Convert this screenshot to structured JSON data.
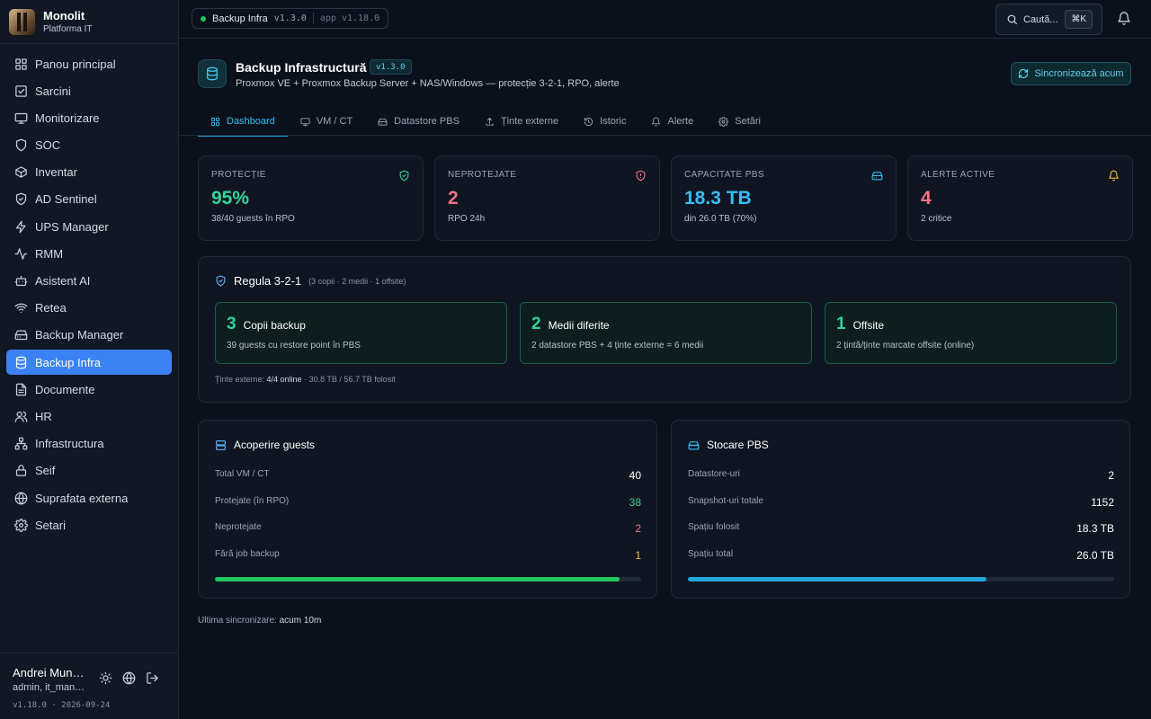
{
  "brand": {
    "name": "Monolit",
    "subtitle": "Platforma IT"
  },
  "sidebar": {
    "items": [
      {
        "label": "Panou principal",
        "icon": "dashboard-icon"
      },
      {
        "label": "Sarcini",
        "icon": "checkbox-icon"
      },
      {
        "label": "Monitorizare",
        "icon": "monitor-icon"
      },
      {
        "label": "SOC",
        "icon": "shield-icon"
      },
      {
        "label": "Inventar",
        "icon": "box-icon"
      },
      {
        "label": "AD Sentinel",
        "icon": "shield-check-icon"
      },
      {
        "label": "UPS Manager",
        "icon": "zap-icon"
      },
      {
        "label": "RMM",
        "icon": "activity-icon"
      },
      {
        "label": "Asistent AI",
        "icon": "bot-icon"
      },
      {
        "label": "Retea",
        "icon": "wifi-icon"
      },
      {
        "label": "Backup Manager",
        "icon": "hard-drive-icon"
      },
      {
        "label": "Backup Infra",
        "icon": "database-icon",
        "active": true
      },
      {
        "label": "Documente",
        "icon": "document-icon"
      },
      {
        "label": "HR",
        "icon": "users-icon"
      },
      {
        "label": "Infrastructura",
        "icon": "network-icon"
      },
      {
        "label": "Seif",
        "icon": "lock-icon"
      },
      {
        "label": "Suprafata externa",
        "icon": "globe-icon"
      },
      {
        "label": "Setari",
        "icon": "gear-icon"
      }
    ]
  },
  "user": {
    "name": "Andrei Muntean",
    "role": "admin, it_manager"
  },
  "footer": {
    "version": "v1.18.0 · 2026-09-24"
  },
  "topbar": {
    "crumb_label": "Backup Infra",
    "crumb_version": "v1.3.0",
    "app_version": "app v1.18.0",
    "search_label": "Caută...",
    "search_shortcut": "⌘K"
  },
  "header": {
    "title": "Backup Infrastructură",
    "version": "v1.3.0",
    "subtitle": "Proxmox VE + Proxmox Backup Server + NAS/Windows — protecție 3-2-1, RPO, alerte",
    "sync_button": "Sincronizează acum"
  },
  "tabs": [
    {
      "label": "Dashboard",
      "icon": "grid-icon",
      "active": true
    },
    {
      "label": "VM / CT",
      "icon": "monitor-icon"
    },
    {
      "label": "Datastore PBS",
      "icon": "hard-drive-icon"
    },
    {
      "label": "Ținte externe",
      "icon": "upload-icon"
    },
    {
      "label": "Istoric",
      "icon": "history-icon"
    },
    {
      "label": "Alerte",
      "icon": "bell-icon"
    },
    {
      "label": "Setări",
      "icon": "gear-icon"
    }
  ],
  "stats": [
    {
      "label": "PROTECȚIE",
      "value": "95%",
      "sub": "38/40 guests în RPO",
      "color": "#34d399",
      "icon": "shield-check-icon"
    },
    {
      "label": "NEPROTEJATE",
      "value": "2",
      "sub": "RPO 24h",
      "color": "#f87185",
      "icon": "shield-alert-icon"
    },
    {
      "label": "CAPACITATE PBS",
      "value": "18.3 TB",
      "sub": "din 26.0 TB (70%)",
      "color": "#38bdf8",
      "icon": "hard-drive-icon"
    },
    {
      "label": "ALERTE ACTIVE",
      "value": "4",
      "sub": "2 critice",
      "color": "#f87185",
      "icon": "bell-icon",
      "icon_color": "#f5b83d"
    }
  ],
  "rule": {
    "title": "Regula 3-2-1",
    "note": "(3 copii · 2 medii · 1 offsite)",
    "boxes": [
      {
        "num": "3",
        "title": "Copii backup",
        "desc": "39 guests cu restore point în PBS"
      },
      {
        "num": "2",
        "title": "Medii diferite",
        "desc": "2 datastore PBS + 4 ținte externe = 6 medii"
      },
      {
        "num": "1",
        "title": "Offsite",
        "desc": "2 țintă/ținte marcate offsite (online)"
      }
    ],
    "footer_label": "Ținte externe: ",
    "footer_value": "4/4 online",
    "footer_rest": " · 30.8 TB / 56.7 TB folosit"
  },
  "coverage": {
    "title": "Acoperire guests",
    "rows": [
      {
        "label": "Total VM / CT",
        "value": "40",
        "color": "#ffffff"
      },
      {
        "label": "Protejate (în RPO)",
        "value": "38",
        "color": "#34d399"
      },
      {
        "label": "Neprotejate",
        "value": "2",
        "color": "#f87185"
      },
      {
        "label": "Fără job backup",
        "value": "1",
        "color": "#f5b83d"
      }
    ],
    "progress": 0.95,
    "bar_color": "#22c55e"
  },
  "storage": {
    "title": "Stocare PBS",
    "rows": [
      {
        "label": "Datastore-uri",
        "value": "2",
        "color": "#ffffff"
      },
      {
        "label": "Snapshot-uri totale",
        "value": "1152",
        "color": "#ffffff"
      },
      {
        "label": "Spațiu folosit",
        "value": "18.3 TB",
        "color": "#ffffff"
      },
      {
        "label": "Spațiu total",
        "value": "26.0 TB",
        "color": "#ffffff"
      }
    ],
    "progress": 0.7,
    "bar_color": "#22a6d8"
  },
  "last_sync": {
    "label": "Ultima sincronizare: ",
    "value": "acum 10m"
  }
}
